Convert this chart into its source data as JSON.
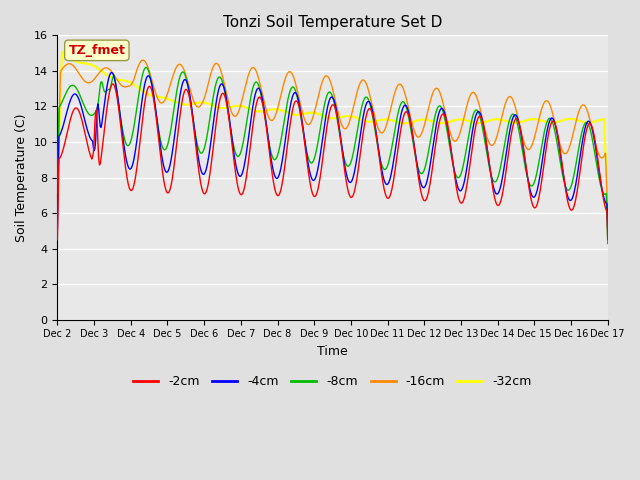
{
  "title": "Tonzi Soil Temperature Set D",
  "xlabel": "Time",
  "ylabel": "Soil Temperature (C)",
  "ylim": [
    0,
    16
  ],
  "yticks": [
    0,
    2,
    4,
    6,
    8,
    10,
    12,
    14,
    16
  ],
  "x_labels": [
    "Dec 2",
    "Dec 3",
    "Dec 4",
    "Dec 5",
    "Dec 6",
    "Dec 7",
    "Dec 8",
    "Dec 9",
    "Dec 10",
    "Dec 11",
    "Dec 12",
    "Dec 13",
    "Dec 14",
    "Dec 15",
    "Dec 16",
    "Dec 17"
  ],
  "series_colors": [
    "#ff0000",
    "#0000ff",
    "#00bb00",
    "#ff8800",
    "#ffff00"
  ],
  "series_labels": [
    "-2cm",
    "-4cm",
    "-8cm",
    "-16cm",
    "-32cm"
  ],
  "annotation_text": "TZ_fmet",
  "annotation_color": "#cc0000",
  "annotation_bg": "#ffffcc",
  "figure_bg": "#e0e0e0",
  "plot_bg": "#e8e8e8",
  "n_days": 15,
  "points_per_day": 48
}
